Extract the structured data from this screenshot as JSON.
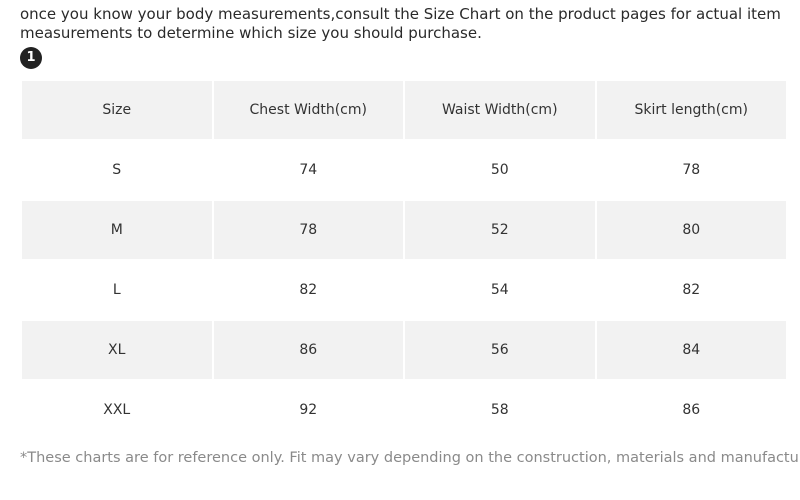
{
  "intro_text": "once you know your body measurements,consult the Size Chart on the product pages for actual item measurements to determine which size you should purchase.",
  "step_badge": "1",
  "table": {
    "headers": [
      "Size",
      "Chest Width(cm)",
      "Waist Width(cm)",
      "Skirt length(cm)"
    ],
    "rows": [
      [
        "S",
        "74",
        "50",
        "78"
      ],
      [
        "M",
        "78",
        "52",
        "80"
      ],
      [
        "L",
        "82",
        "54",
        "82"
      ],
      [
        "XL",
        "86",
        "56",
        "84"
      ],
      [
        "XXL",
        "92",
        "58",
        "86"
      ]
    ]
  },
  "footnote": "*These charts are for reference only. Fit may vary depending on the construction, materials and manufacturer.",
  "colors": {
    "shaded_row": "#f2f2f2",
    "badge": "#222222",
    "footnote_text": "#8a8a8a"
  }
}
